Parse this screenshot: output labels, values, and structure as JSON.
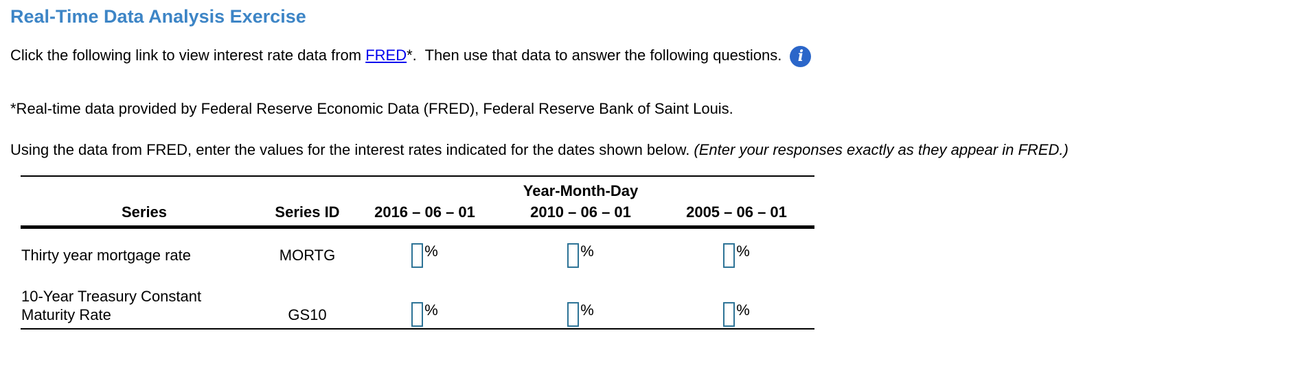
{
  "page": {
    "title": "Real-Time Data Analysis Exercise"
  },
  "intro": {
    "before_link": "Click the following link to view interest rate data from ",
    "link_text": "FRED",
    "after_link": "*.  Then use that data to answer the following questions.",
    "info_icon": "i"
  },
  "footnote": "*Real-time data provided by Federal Reserve Economic Data (FRED), Federal Reserve Bank of Saint Louis.",
  "instructions": {
    "normal": "Using the data from FRED, enter the values for the interest rates indicated for the dates shown below. ",
    "italic": "(Enter your responses exactly as they appear in FRED.)"
  },
  "table": {
    "group_header": "Year-Month-Day",
    "columns": [
      "Series",
      "Series ID",
      "2016 – 06 – 01",
      "2010 – 06 – 01",
      "2005 – 06 – 01"
    ],
    "unit": "%",
    "rows": [
      {
        "series": "Thirty year mortgage rate",
        "series_id": "MORTG",
        "inputs": [
          "",
          "",
          ""
        ]
      },
      {
        "series": "10-Year Treasury Constant Maturity Rate",
        "series_id": "GS10",
        "inputs": [
          "",
          "",
          ""
        ]
      }
    ]
  },
  "colors": {
    "heading": "#3D85C6",
    "link": "#0000EE",
    "info_icon_bg": "#2B66C9",
    "input_border": "#2D7396"
  }
}
